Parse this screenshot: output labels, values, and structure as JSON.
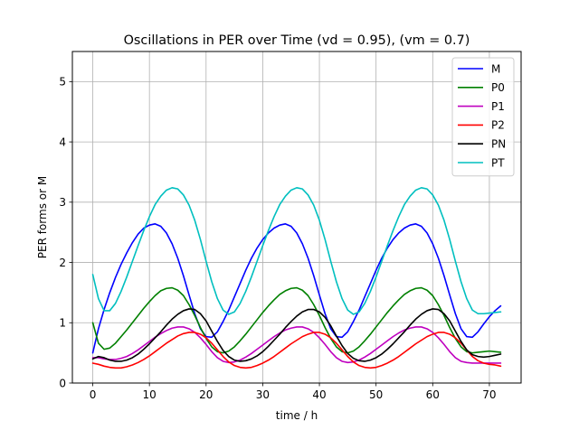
{
  "chart_data": {
    "type": "line",
    "title": "Oscillations in PER over Time (vd = 0.95), (vm = 0.7)",
    "xlabel": "time / h",
    "ylabel": "PER forms or M",
    "xlim": [
      -3.6,
      75.6
    ],
    "ylim": [
      0,
      5.5
    ],
    "xticks": [
      0,
      10,
      20,
      30,
      40,
      50,
      60,
      70
    ],
    "yticks": [
      0,
      1,
      2,
      3,
      4,
      5
    ],
    "grid": true,
    "legend_position": "top-right",
    "x": [
      0,
      1,
      2,
      3,
      4,
      5,
      6,
      7,
      8,
      9,
      10,
      11,
      12,
      13,
      14,
      15,
      16,
      17,
      18,
      19,
      20,
      21,
      22,
      23,
      24,
      25,
      26,
      27,
      28,
      29,
      30,
      31,
      32,
      33,
      34,
      35,
      36,
      37,
      38,
      39,
      40,
      41,
      42,
      43,
      44,
      45,
      46,
      47,
      48,
      49,
      50,
      51,
      52,
      53,
      54,
      55,
      56,
      57,
      58,
      59,
      60,
      61,
      62,
      63,
      64,
      65,
      66,
      67,
      68,
      69,
      70,
      71,
      72
    ],
    "series": [
      {
        "name": "M",
        "color": "#0000ff",
        "values": [
          0.5,
          0.9,
          1.22,
          1.5,
          1.75,
          1.97,
          2.16,
          2.33,
          2.47,
          2.57,
          2.62,
          2.64,
          2.6,
          2.49,
          2.31,
          2.07,
          1.78,
          1.46,
          1.15,
          0.9,
          0.77,
          0.76,
          0.85,
          1.02,
          1.21,
          1.43,
          1.65,
          1.87,
          2.07,
          2.24,
          2.38,
          2.49,
          2.57,
          2.62,
          2.64,
          2.6,
          2.49,
          2.31,
          2.07,
          1.78,
          1.46,
          1.15,
          0.9,
          0.77,
          0.76,
          0.85,
          1.02,
          1.21,
          1.43,
          1.65,
          1.87,
          2.07,
          2.24,
          2.38,
          2.49,
          2.57,
          2.62,
          2.64,
          2.6,
          2.49,
          2.31,
          2.07,
          1.78,
          1.46,
          1.15,
          0.9,
          0.77,
          0.76,
          0.85,
          0.98,
          1.1,
          1.2,
          1.28
        ]
      },
      {
        "name": "P0",
        "color": "#008000",
        "values": [
          1.0,
          0.66,
          0.56,
          0.58,
          0.66,
          0.77,
          0.88,
          1.0,
          1.12,
          1.24,
          1.35,
          1.45,
          1.53,
          1.57,
          1.58,
          1.54,
          1.45,
          1.3,
          1.12,
          0.92,
          0.74,
          0.6,
          0.52,
          0.5,
          0.53,
          0.6,
          0.7,
          0.81,
          0.93,
          1.05,
          1.17,
          1.28,
          1.38,
          1.47,
          1.53,
          1.57,
          1.58,
          1.54,
          1.45,
          1.3,
          1.12,
          0.92,
          0.74,
          0.6,
          0.52,
          0.5,
          0.53,
          0.6,
          0.7,
          0.81,
          0.93,
          1.05,
          1.17,
          1.28,
          1.38,
          1.47,
          1.53,
          1.57,
          1.58,
          1.54,
          1.45,
          1.3,
          1.12,
          0.92,
          0.74,
          0.6,
          0.52,
          0.5,
          0.51,
          0.52,
          0.53,
          0.52,
          0.51
        ]
      },
      {
        "name": "P1",
        "color": "#bf00bf",
        "values": [
          0.42,
          0.42,
          0.4,
          0.39,
          0.39,
          0.41,
          0.44,
          0.49,
          0.55,
          0.62,
          0.69,
          0.76,
          0.82,
          0.87,
          0.91,
          0.93,
          0.93,
          0.9,
          0.84,
          0.75,
          0.64,
          0.52,
          0.42,
          0.36,
          0.34,
          0.35,
          0.38,
          0.43,
          0.49,
          0.56,
          0.63,
          0.7,
          0.77,
          0.83,
          0.88,
          0.91,
          0.93,
          0.93,
          0.9,
          0.84,
          0.75,
          0.64,
          0.52,
          0.42,
          0.36,
          0.34,
          0.35,
          0.38,
          0.43,
          0.49,
          0.56,
          0.63,
          0.7,
          0.77,
          0.83,
          0.88,
          0.91,
          0.93,
          0.93,
          0.9,
          0.84,
          0.75,
          0.64,
          0.52,
          0.42,
          0.36,
          0.34,
          0.33,
          0.33,
          0.33,
          0.33,
          0.33,
          0.33
        ]
      },
      {
        "name": "P2",
        "color": "#ff0000",
        "values": [
          0.33,
          0.31,
          0.28,
          0.26,
          0.25,
          0.25,
          0.27,
          0.3,
          0.34,
          0.39,
          0.45,
          0.52,
          0.59,
          0.66,
          0.72,
          0.78,
          0.82,
          0.84,
          0.84,
          0.81,
          0.75,
          0.66,
          0.55,
          0.44,
          0.35,
          0.29,
          0.26,
          0.25,
          0.26,
          0.29,
          0.33,
          0.38,
          0.44,
          0.51,
          0.58,
          0.65,
          0.71,
          0.77,
          0.81,
          0.84,
          0.84,
          0.81,
          0.75,
          0.66,
          0.55,
          0.44,
          0.35,
          0.29,
          0.26,
          0.25,
          0.26,
          0.29,
          0.33,
          0.38,
          0.44,
          0.51,
          0.58,
          0.65,
          0.71,
          0.77,
          0.81,
          0.84,
          0.84,
          0.81,
          0.75,
          0.66,
          0.55,
          0.44,
          0.37,
          0.33,
          0.31,
          0.3,
          0.28
        ]
      },
      {
        "name": "PN",
        "color": "#000000",
        "values": [
          0.4,
          0.44,
          0.42,
          0.38,
          0.36,
          0.36,
          0.38,
          0.42,
          0.48,
          0.56,
          0.65,
          0.75,
          0.85,
          0.96,
          1.06,
          1.14,
          1.2,
          1.23,
          1.22,
          1.15,
          1.03,
          0.86,
          0.69,
          0.54,
          0.44,
          0.38,
          0.36,
          0.37,
          0.4,
          0.45,
          0.52,
          0.61,
          0.71,
          0.81,
          0.92,
          1.02,
          1.11,
          1.18,
          1.22,
          1.22,
          1.18,
          1.09,
          0.95,
          0.78,
          0.62,
          0.49,
          0.41,
          0.37,
          0.36,
          0.38,
          0.42,
          0.48,
          0.56,
          0.65,
          0.75,
          0.85,
          0.96,
          1.06,
          1.14,
          1.2,
          1.23,
          1.22,
          1.15,
          1.03,
          0.86,
          0.69,
          0.55,
          0.47,
          0.44,
          0.43,
          0.44,
          0.46,
          0.48
        ]
      },
      {
        "name": "PT",
        "color": "#00bfbf",
        "values": [
          1.8,
          1.4,
          1.2,
          1.2,
          1.32,
          1.52,
          1.76,
          2.02,
          2.28,
          2.53,
          2.76,
          2.96,
          3.1,
          3.2,
          3.24,
          3.22,
          3.12,
          2.95,
          2.7,
          2.38,
          2.02,
          1.68,
          1.4,
          1.21,
          1.14,
          1.18,
          1.32,
          1.52,
          1.76,
          2.02,
          2.28,
          2.53,
          2.76,
          2.96,
          3.1,
          3.2,
          3.24,
          3.22,
          3.12,
          2.95,
          2.7,
          2.38,
          2.02,
          1.68,
          1.4,
          1.21,
          1.14,
          1.18,
          1.32,
          1.52,
          1.76,
          2.02,
          2.28,
          2.53,
          2.76,
          2.96,
          3.1,
          3.2,
          3.24,
          3.22,
          3.12,
          2.95,
          2.7,
          2.38,
          2.02,
          1.68,
          1.4,
          1.21,
          1.15,
          1.15,
          1.16,
          1.17,
          1.18
        ]
      }
    ]
  }
}
